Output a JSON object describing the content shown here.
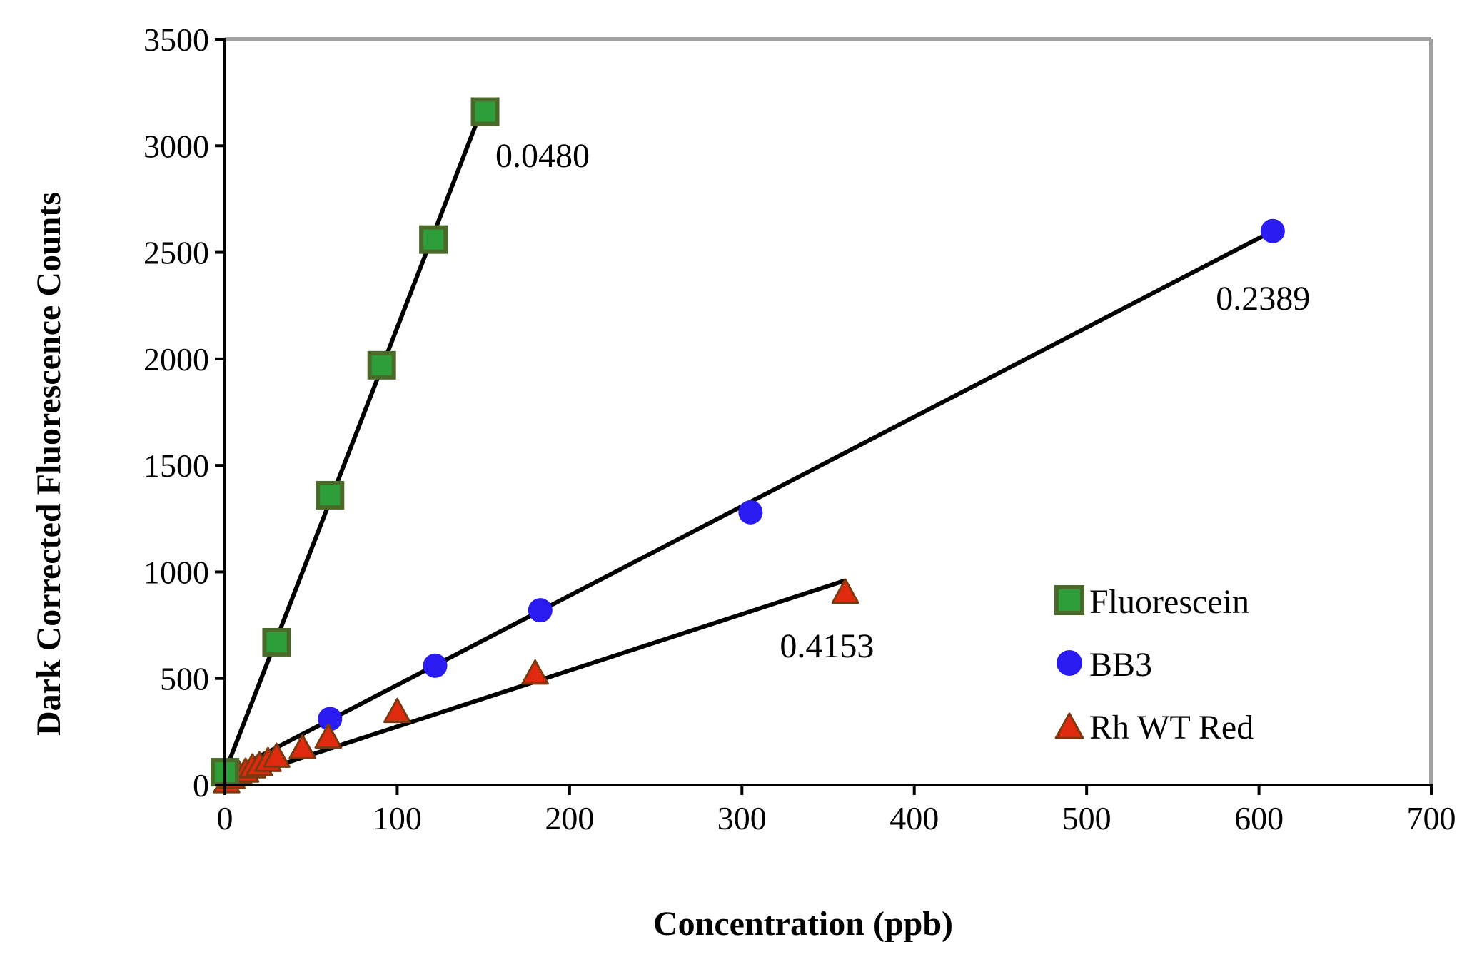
{
  "chart_data": {
    "type": "scatter",
    "xlabel": "Concentration (ppb)",
    "ylabel": "Dark Corrected Fluorescence Counts",
    "xlim": [
      0,
      700
    ],
    "ylim": [
      0,
      3500
    ],
    "x_ticks": [
      "0",
      "100",
      "200",
      "300",
      "400",
      "500",
      "600",
      "700"
    ],
    "y_ticks": [
      "0",
      "500",
      "1000",
      "1500",
      "2000",
      "2500",
      "3000",
      "3500"
    ],
    "x_tick_values": [
      0,
      100,
      200,
      300,
      400,
      500,
      600,
      700
    ],
    "y_tick_values": [
      0,
      500,
      1000,
      1500,
      2000,
      2500,
      3000,
      3500
    ],
    "grid": false,
    "legend": "right",
    "series": [
      {
        "name": "Fluorescein",
        "marker": "square",
        "color": "#2e9e3a",
        "edge_color": "#4a6a2a",
        "points": [
          [
            0,
            60
          ],
          [
            30,
            670
          ],
          [
            61,
            1360
          ],
          [
            91,
            1970
          ],
          [
            121,
            2560
          ],
          [
            151,
            3160
          ]
        ],
        "fit_line": [
          [
            0,
            60
          ],
          [
            150,
            3190
          ]
        ],
        "slope_label": "0.0480"
      },
      {
        "name": "BB3",
        "marker": "circle",
        "color": "#2a1cf0",
        "edge_color": "#2a1cf0",
        "points": [
          [
            0,
            50
          ],
          [
            61,
            310
          ],
          [
            122,
            560
          ],
          [
            183,
            820
          ],
          [
            305,
            1280
          ],
          [
            608,
            2600
          ]
        ],
        "fit_line": [
          [
            0,
            50
          ],
          [
            608,
            2600
          ]
        ],
        "slope_label": "0.2389"
      },
      {
        "name": "Rh WT Red",
        "marker": "triangle",
        "color": "#e02a10",
        "edge_color": "#7a3a10",
        "points": [
          [
            1,
            20
          ],
          [
            4,
            40
          ],
          [
            8,
            60
          ],
          [
            12,
            70
          ],
          [
            16,
            90
          ],
          [
            20,
            100
          ],
          [
            25,
            120
          ],
          [
            30,
            140
          ],
          [
            45,
            180
          ],
          [
            60,
            230
          ],
          [
            100,
            350
          ],
          [
            180,
            530
          ],
          [
            360,
            910
          ]
        ],
        "fit_line": [
          [
            0,
            10
          ],
          [
            360,
            960
          ]
        ],
        "slope_label": "0.4153"
      }
    ]
  }
}
